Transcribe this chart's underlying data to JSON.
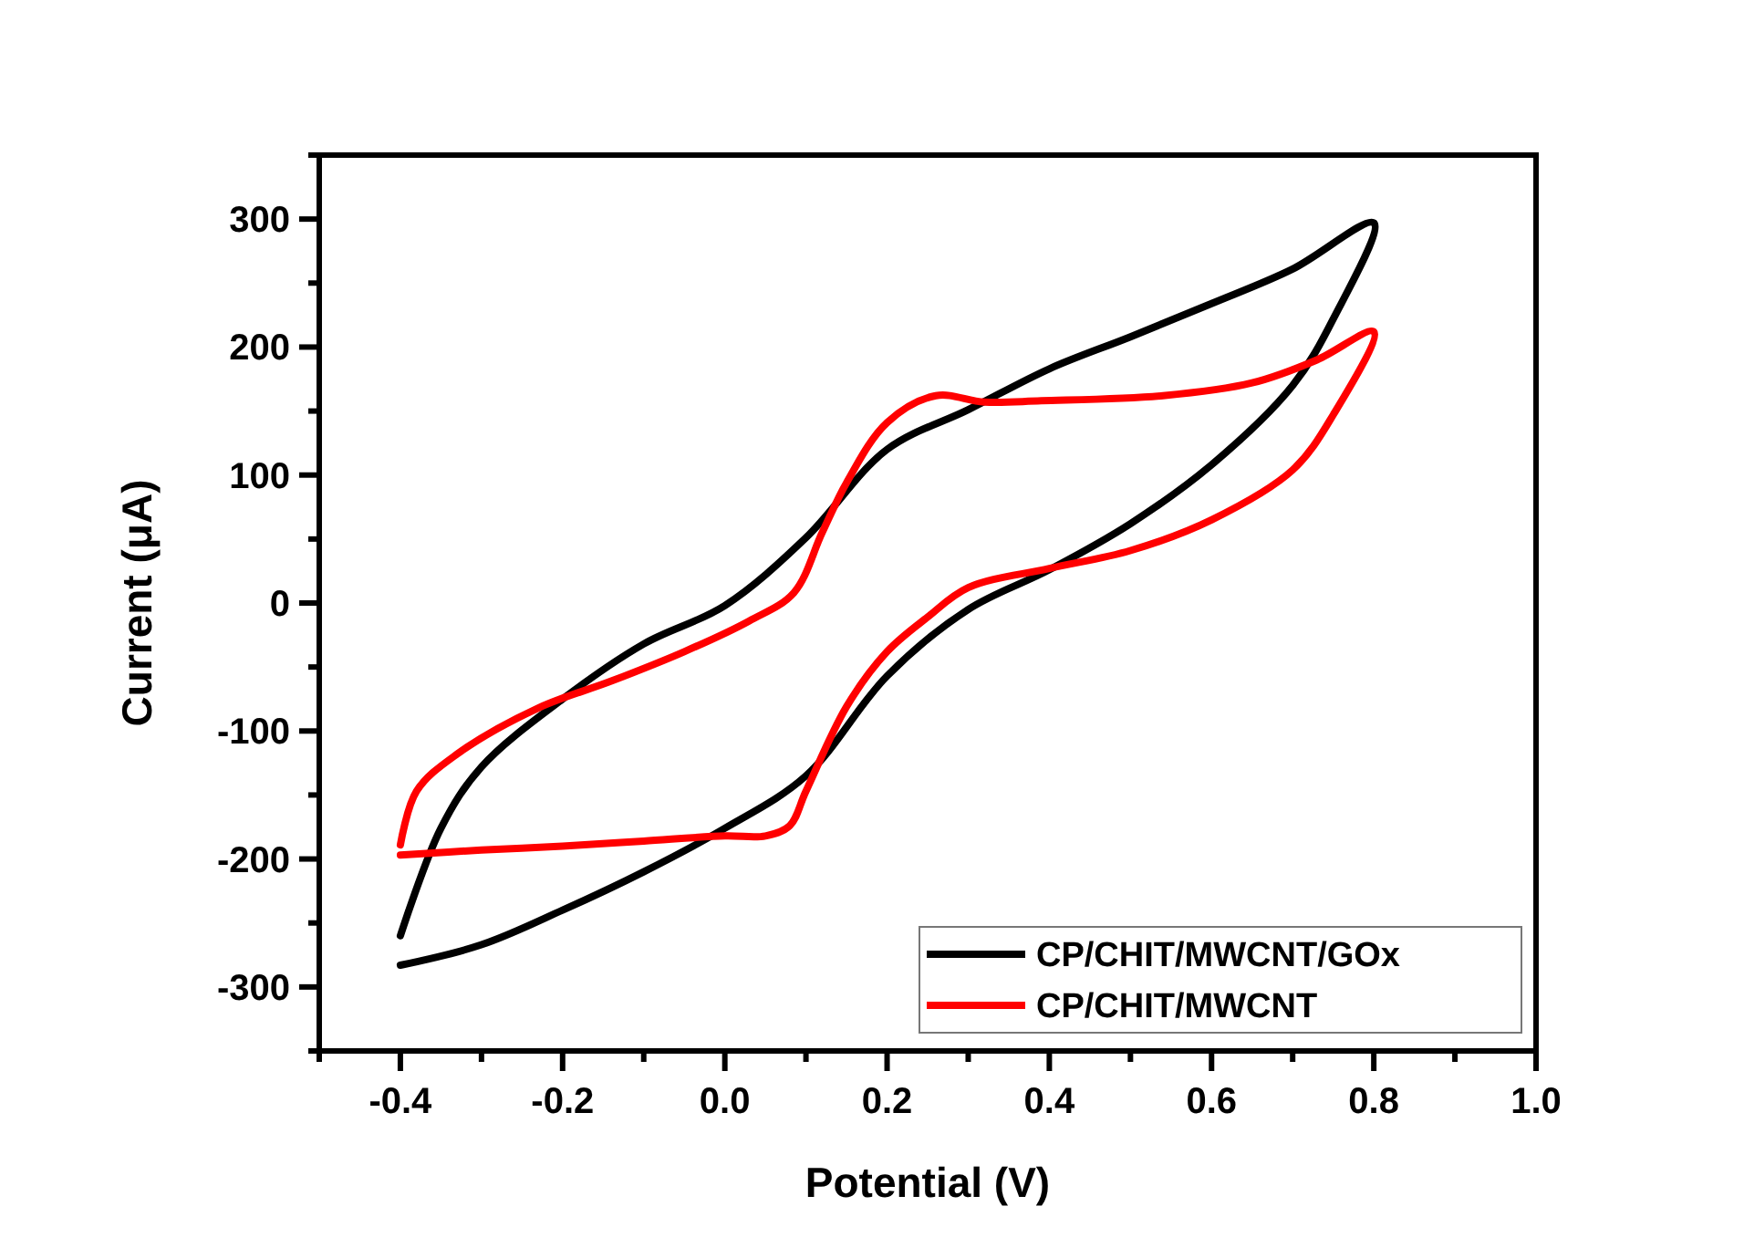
{
  "chart_data": {
    "type": "line",
    "xlabel": "Potential (V)",
    "ylabel": "Current (μA)",
    "xlim": [
      -0.5,
      1.0
    ],
    "ylim": [
      -350,
      350
    ],
    "xticks": [
      {
        "value": -0.5,
        "label": null
      },
      -0.4,
      {
        "value": -0.3,
        "label": null
      },
      -0.2,
      {
        "value": -0.1,
        "label": null
      },
      {
        "value": 0,
        "label": "0.0"
      },
      {
        "value": 0.1,
        "label": null
      },
      0.2,
      {
        "value": 0.3,
        "label": null
      },
      0.4,
      {
        "value": 0.5,
        "label": null
      },
      0.6,
      {
        "value": 0.7,
        "label": null
      },
      0.8,
      {
        "value": 0.9,
        "label": null
      },
      {
        "value": 1.0,
        "label": "1.0"
      }
    ],
    "yticks": [
      {
        "value": -350,
        "label": null
      },
      -300,
      {
        "value": -250,
        "label": null
      },
      -200,
      {
        "value": -150,
        "label": null
      },
      -100,
      {
        "value": -50,
        "label": null
      },
      0,
      {
        "value": 50,
        "label": null
      },
      100,
      {
        "value": 150,
        "label": null
      },
      200,
      {
        "value": 250,
        "label": null
      },
      300,
      {
        "value": 350,
        "label": null
      }
    ],
    "grid": false,
    "legend": "bottom right",
    "line_style": "solid",
    "marker": "none",
    "series": [
      {
        "name": "CP/CHIT/MWCNT/GOx",
        "color": "#000000",
        "x": [
          -0.4,
          -0.3,
          -0.2,
          -0.1,
          0,
          0.1,
          0.2,
          0.3,
          0.4,
          0.5,
          0.6,
          0.7,
          0.75,
          0.8,
          0.7,
          0.6,
          0.5,
          0.4,
          0.3,
          0.2,
          0.1,
          0,
          -0.1,
          -0.2,
          -0.3,
          -0.35,
          -0.4
        ],
        "values": [
          -283,
          -267,
          -240,
          -210,
          -176,
          -135,
          -57,
          -5,
          26,
          62,
          108,
          170,
          222,
          297,
          261,
          234,
          208,
          183,
          151,
          120,
          51,
          -2,
          -32,
          -75,
          -128,
          -176,
          -260
        ]
      },
      {
        "name": "CP/CHIT/MWCNT",
        "color": "#ff0000",
        "x": [
          -0.4,
          -0.3,
          -0.2,
          -0.1,
          0,
          0.05,
          0.08,
          0.1,
          0.15,
          0.2,
          0.25,
          0.3,
          0.4,
          0.5,
          0.6,
          0.7,
          0.75,
          0.8,
          0.73,
          0.65,
          0.54,
          0.39,
          0.32,
          0.26,
          0.2,
          0.15,
          0.12,
          0.085,
          0.03,
          -0.05,
          -0.14,
          -0.23,
          -0.33,
          -0.38,
          -0.4
        ],
        "values": [
          -197,
          -193,
          -190,
          -186,
          -182,
          -182,
          -174,
          -147,
          -81,
          -38,
          -11,
          12,
          27,
          41,
          65,
          104,
          147,
          212,
          190,
          172,
          162,
          158,
          157,
          162,
          141,
          94,
          55,
          8,
          -14,
          -38,
          -61,
          -82,
          -118,
          -147,
          -189
        ]
      }
    ]
  }
}
